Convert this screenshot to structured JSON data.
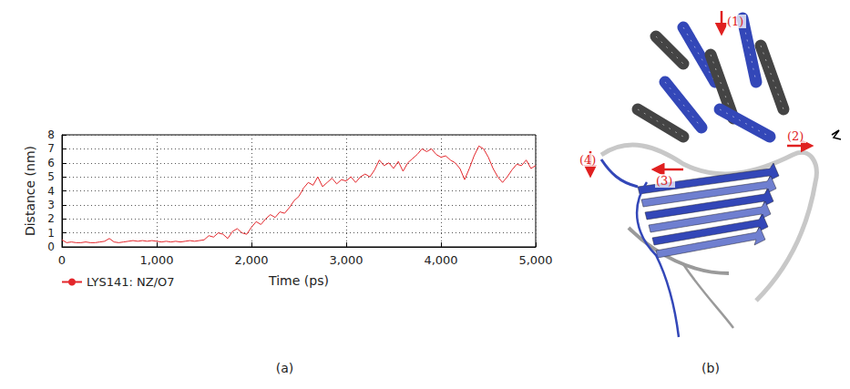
{
  "chart_data": {
    "type": "line",
    "xlabel": "Time (ps)",
    "ylabel": "Distance (nm)",
    "x": [
      0,
      50,
      100,
      150,
      200,
      250,
      300,
      350,
      400,
      450,
      500,
      550,
      600,
      650,
      700,
      750,
      800,
      850,
      900,
      950,
      1000,
      1050,
      1100,
      1150,
      1200,
      1250,
      1300,
      1350,
      1400,
      1450,
      1500,
      1550,
      1600,
      1650,
      1700,
      1750,
      1800,
      1850,
      1900,
      1950,
      2000,
      2050,
      2100,
      2150,
      2200,
      2250,
      2300,
      2350,
      2400,
      2450,
      2500,
      2550,
      2600,
      2650,
      2700,
      2750,
      2800,
      2850,
      2900,
      2950,
      3000,
      3050,
      3100,
      3150,
      3200,
      3250,
      3300,
      3350,
      3400,
      3450,
      3500,
      3550,
      3600,
      3650,
      3700,
      3750,
      3800,
      3850,
      3900,
      3950,
      4000,
      4050,
      4100,
      4150,
      4200,
      4250,
      4300,
      4350,
      4400,
      4450,
      4500,
      4550,
      4600,
      4650,
      4700,
      4750,
      4800,
      4850,
      4900,
      4950,
      5000
    ],
    "series": [
      {
        "name": "LYS141: NZ/O7",
        "color": "#e3262b",
        "values": [
          0.5,
          0.3,
          0.35,
          0.3,
          0.3,
          0.35,
          0.3,
          0.3,
          0.35,
          0.4,
          0.6,
          0.35,
          0.3,
          0.35,
          0.4,
          0.45,
          0.4,
          0.45,
          0.4,
          0.45,
          0.4,
          0.35,
          0.4,
          0.35,
          0.4,
          0.35,
          0.4,
          0.45,
          0.4,
          0.45,
          0.5,
          0.8,
          0.7,
          1.0,
          0.9,
          0.6,
          1.1,
          1.3,
          1.0,
          0.9,
          1.4,
          1.8,
          1.6,
          2.0,
          2.3,
          2.1,
          2.5,
          2.4,
          2.8,
          3.3,
          3.6,
          4.2,
          4.6,
          4.4,
          5.0,
          4.3,
          4.6,
          4.9,
          4.5,
          4.8,
          4.7,
          5.0,
          4.6,
          5.0,
          5.2,
          5.0,
          5.5,
          6.2,
          5.8,
          6.0,
          5.6,
          6.1,
          5.4,
          6.0,
          6.3,
          6.6,
          7.0,
          6.8,
          7.0,
          6.6,
          6.4,
          6.5,
          6.2,
          6.0,
          5.6,
          4.8,
          5.6,
          6.5,
          7.2,
          7.0,
          6.4,
          5.6,
          5.0,
          4.6,
          5.0,
          5.5,
          5.9,
          5.8,
          6.2,
          5.6,
          5.8
        ]
      }
    ],
    "xlim": [
      0,
      5000
    ],
    "xticks": [
      0,
      1000,
      2000,
      3000,
      4000,
      5000
    ],
    "ylim": [
      0,
      8
    ],
    "yticks": [
      0,
      1,
      2,
      3,
      4,
      5,
      6,
      7,
      8
    ],
    "grid": true,
    "legend": "bottom"
  },
  "panel_labels": [
    "(a)",
    "(b)"
  ],
  "structure_annotations": [
    "(1)",
    "(2)",
    "(3)",
    "(4)"
  ]
}
